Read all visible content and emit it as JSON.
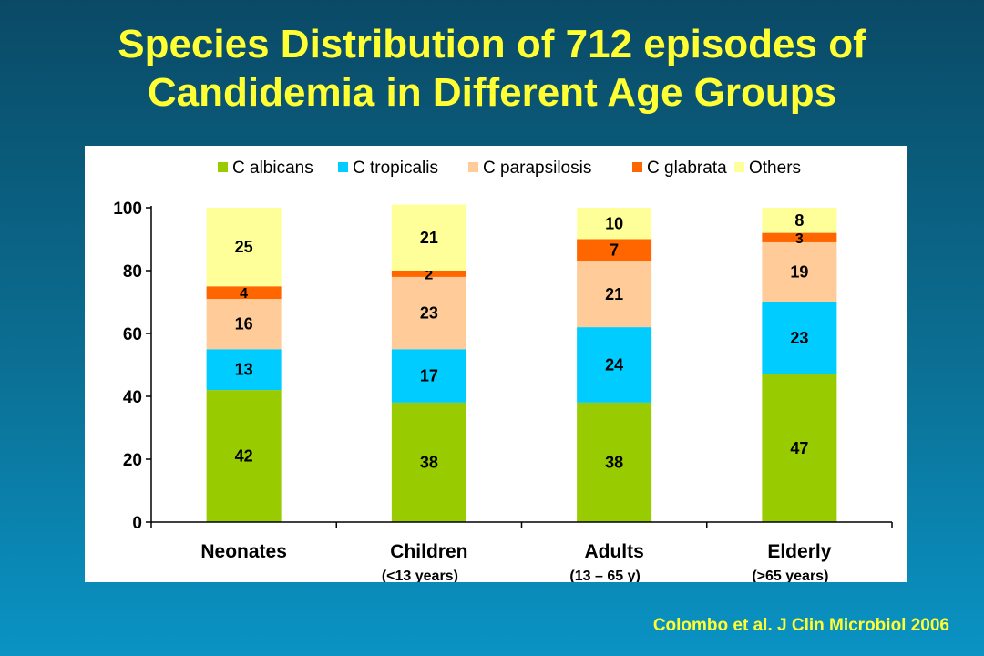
{
  "slide": {
    "title_line1": "Species Distribution of 712 episodes of",
    "title_line2": "Candidemia in Different Age Groups",
    "citation": "Colombo et al. J Clin Microbiol 2006"
  },
  "chart_data": {
    "type": "bar",
    "stacked": true,
    "categories": [
      "Neonates",
      "Children",
      "Adults",
      "Elderly"
    ],
    "category_sublabels": [
      "",
      "(<13 years)",
      "(13 – 65 y)",
      "(>65 years)"
    ],
    "series": [
      {
        "name": "C albicans",
        "color": "#99cc00",
        "values": [
          42,
          38,
          38,
          47
        ]
      },
      {
        "name": "C tropicalis",
        "color": "#00ccff",
        "values": [
          13,
          17,
          24,
          23
        ]
      },
      {
        "name": "C parapsilosis",
        "color": "#ffcc99",
        "values": [
          16,
          23,
          21,
          19
        ]
      },
      {
        "name": "C glabrata",
        "color": "#ff6600",
        "values": [
          4,
          2,
          7,
          3
        ]
      },
      {
        "name": "Others",
        "color": "#ffff99",
        "values": [
          25,
          21,
          10,
          8
        ]
      }
    ],
    "yticks": [
      0,
      20,
      40,
      60,
      80,
      100
    ],
    "ylim": [
      0,
      100
    ],
    "legend_position": "top",
    "grid": false
  }
}
